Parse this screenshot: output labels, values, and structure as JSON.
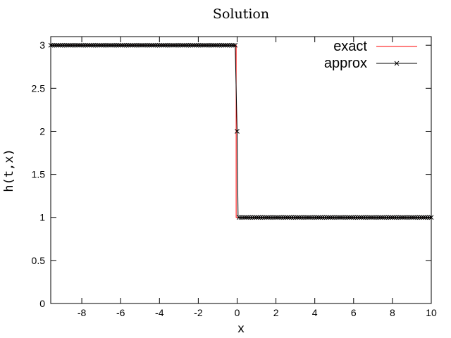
{
  "chart_data": {
    "type": "line",
    "title": "Solution",
    "xlabel": "x",
    "ylabel": "h(t,x)",
    "xlim": [
      -9.6,
      10
    ],
    "ylim": [
      0,
      3.1
    ],
    "xticks": [
      -8,
      -6,
      -4,
      -2,
      0,
      2,
      4,
      6,
      8,
      10
    ],
    "xtick_labels": [
      "-8",
      "-6",
      "-4",
      "-2",
      "0",
      "2",
      "4",
      "6",
      "8",
      "10"
    ],
    "yticks": [
      0,
      0.5,
      1,
      1.5,
      2,
      2.5,
      3
    ],
    "ytick_labels": [
      "0",
      "0.5",
      "1",
      "1.5",
      "2",
      "2.5",
      "3"
    ],
    "grid": false,
    "legend_position": "top-right",
    "series": [
      {
        "name": "exact",
        "color": "#ff0000",
        "marker": "none",
        "x": [
          -9.6,
          -0.05,
          -0.05,
          10
        ],
        "y": [
          3,
          3,
          1,
          1
        ]
      },
      {
        "name": "approx",
        "color": "#000000",
        "marker": "x",
        "x": [
          -9.6,
          -0.1,
          0.0,
          0.05,
          10
        ],
        "y": [
          3,
          3,
          2.0,
          1,
          1
        ],
        "marker_step": 0.1
      }
    ]
  }
}
